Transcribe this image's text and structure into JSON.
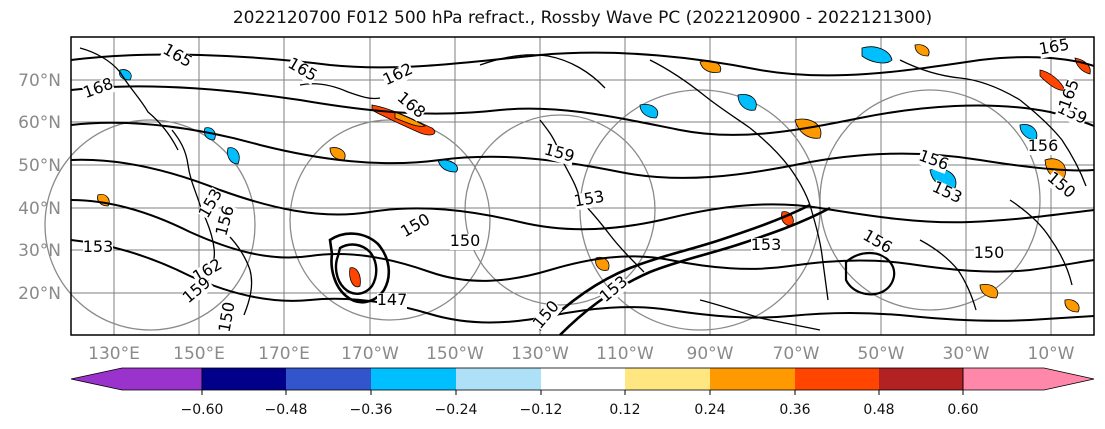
{
  "title": "2022120700 F012 500 hPa refract., Rossby Wave PC (2022120900 - 2022121300)",
  "latitude_labels": [
    "70°N",
    "60°N",
    "50°N",
    "40°N",
    "30°N",
    "20°N"
  ],
  "longitude_labels": [
    "130°E",
    "150°E",
    "170°E",
    "170°W",
    "150°W",
    "130°W",
    "110°W",
    "90°W",
    "70°W",
    "50°W",
    "30°W",
    "10°W"
  ],
  "contour_labels": [
    "168",
    "165",
    "162",
    "168",
    "165",
    "159",
    "156",
    "153",
    "150",
    "153",
    "150",
    "153",
    "156",
    "159",
    "156",
    "153",
    "150",
    "165",
    "162",
    "159",
    "156",
    "153",
    "150",
    "147",
    "150",
    "153",
    "150",
    "165"
  ],
  "colorbar": {
    "tick_labels": [
      "−0.60",
      "−0.48",
      "−0.36",
      "−0.24",
      "−0.12",
      "0.12",
      "0.24",
      "0.36",
      "0.48",
      "0.60"
    ],
    "colors": [
      "#9933cc",
      "#00008b",
      "#3355cc",
      "#00bfff",
      "#aee0f7",
      "#ffffff",
      "#ffe680",
      "#ff9900",
      "#ff4500",
      "#b22222",
      "#ff88aa"
    ]
  },
  "map_colors": {
    "land_outline": "#000000",
    "grid": "#7f7f7f",
    "contour": "#000000"
  }
}
